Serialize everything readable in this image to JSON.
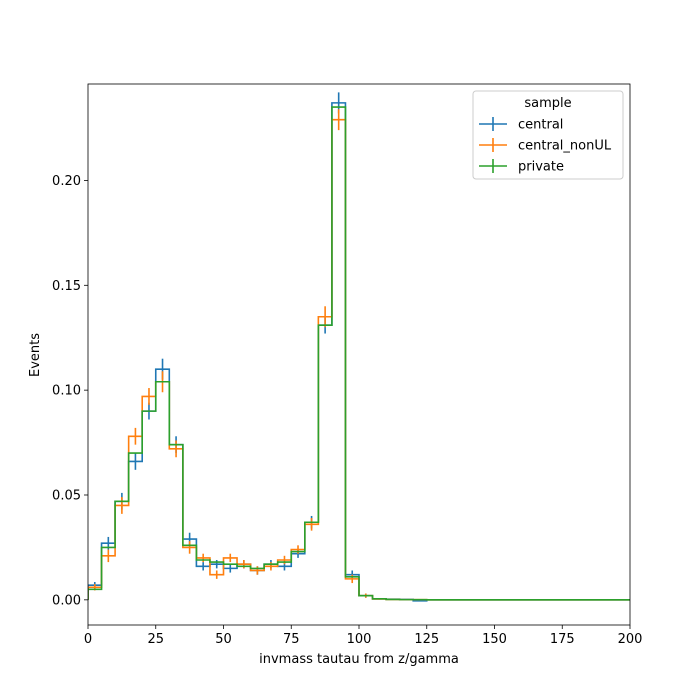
{
  "chart_data": {
    "type": "line",
    "title": "",
    "xlabel": "invmass tautau from z/gamma",
    "ylabel": "Events",
    "xlim": [
      0,
      200
    ],
    "ylim": [
      -0.012,
      0.246
    ],
    "xticks": [
      0,
      25,
      50,
      75,
      100,
      125,
      150,
      175,
      200
    ],
    "xtick_labels": [
      "0",
      "25",
      "50",
      "75",
      "100",
      "125",
      "150",
      "175",
      "200"
    ],
    "yticks": [
      0.0,
      0.05,
      0.1,
      0.15,
      0.2
    ],
    "ytick_labels": [
      "0.00",
      "0.05",
      "0.10",
      "0.15",
      "0.20"
    ],
    "grid": false,
    "legend": {
      "title": "sample",
      "position": "top-right"
    },
    "bin_edges": [
      0,
      5,
      10,
      15,
      20,
      25,
      30,
      35,
      40,
      45,
      50,
      55,
      60,
      65,
      70,
      75,
      80,
      85,
      90,
      95,
      100,
      105,
      110,
      115,
      120,
      125,
      130,
      135,
      140,
      145,
      150,
      155,
      160,
      165,
      170,
      175,
      180,
      185,
      190,
      195,
      200
    ],
    "series": [
      {
        "name": "central",
        "color": "#1f77b4",
        "values": [
          0.007,
          0.027,
          0.047,
          0.066,
          0.09,
          0.11,
          0.074,
          0.029,
          0.016,
          0.017,
          0.015,
          0.017,
          0.014,
          0.017,
          0.016,
          0.022,
          0.037,
          0.131,
          0.237,
          0.012,
          0.002,
          0.0005,
          0.0003,
          0.0002,
          -0.0005,
          0,
          0,
          0,
          0,
          0,
          0,
          0,
          0,
          0,
          0,
          0,
          0,
          0,
          0,
          0
        ],
        "errors": [
          0.0015,
          0.003,
          0.004,
          0.004,
          0.004,
          0.005,
          0.004,
          0.003,
          0.002,
          0.002,
          0.002,
          0.002,
          0.002,
          0.002,
          0.002,
          0.002,
          0.003,
          0.004,
          0.005,
          0.002,
          0.001,
          0.0003,
          0.0002,
          0.0002,
          0.0003,
          0,
          0,
          0,
          0,
          0,
          0,
          0,
          0,
          0,
          0,
          0,
          0,
          0,
          0,
          0
        ]
      },
      {
        "name": "central_nonUL",
        "color": "#ff7f0e",
        "values": [
          0.006,
          0.021,
          0.045,
          0.078,
          0.097,
          0.104,
          0.072,
          0.025,
          0.02,
          0.012,
          0.02,
          0.017,
          0.014,
          0.016,
          0.019,
          0.024,
          0.036,
          0.135,
          0.229,
          0.01,
          0.002,
          0.0004,
          0.0002,
          0.0001,
          0.0001,
          0,
          0,
          0,
          0,
          0,
          0,
          0,
          0,
          0,
          0,
          0,
          0,
          0,
          0,
          0
        ],
        "errors": [
          0.0015,
          0.003,
          0.004,
          0.004,
          0.004,
          0.005,
          0.004,
          0.003,
          0.002,
          0.002,
          0.002,
          0.002,
          0.002,
          0.002,
          0.002,
          0.002,
          0.003,
          0.005,
          0.005,
          0.002,
          0.001,
          0.0003,
          0.0002,
          0.0001,
          0.0001,
          0,
          0,
          0,
          0,
          0,
          0,
          0,
          0,
          0,
          0,
          0,
          0,
          0,
          0,
          0
        ]
      },
      {
        "name": "private",
        "color": "#2ca02c",
        "values": [
          0.005,
          0.025,
          0.047,
          0.07,
          0.09,
          0.104,
          0.074,
          0.026,
          0.019,
          0.018,
          0.017,
          0.016,
          0.015,
          0.017,
          0.018,
          0.023,
          0.037,
          0.131,
          0.235,
          0.011,
          0.002,
          0.0005,
          0.0002,
          0.0001,
          0.0001,
          0,
          0,
          0,
          0,
          0,
          0,
          0,
          0,
          0,
          0,
          0,
          0,
          0,
          0,
          0
        ]
      }
    ]
  }
}
